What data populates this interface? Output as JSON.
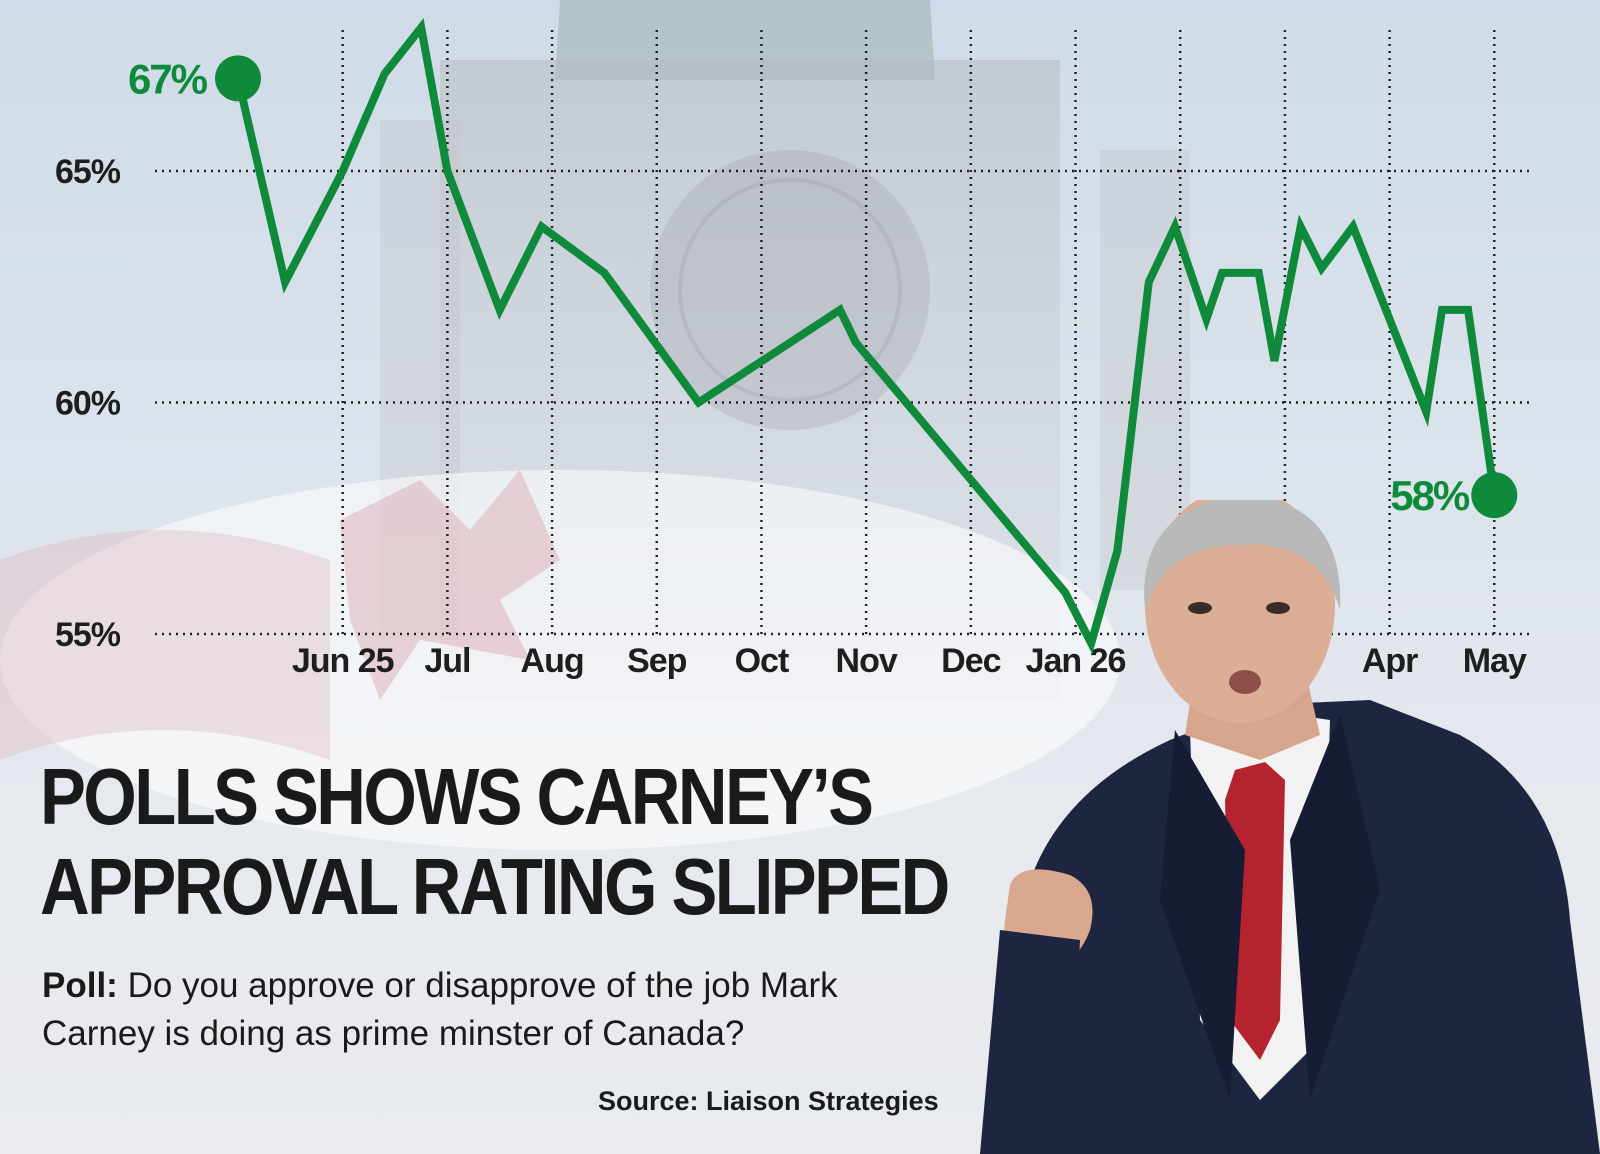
{
  "colors": {
    "line": "#0f8a3a",
    "grid": "#222222",
    "text": "#1a1a1a"
  },
  "headline": {
    "line1": "POLLS SHOWS CARNEY’S",
    "line2": "APPROVAL RATING SLIPPED"
  },
  "subtitle": {
    "lead": "Poll:",
    "text": "Do you approve or disapprove of the job Mark Carney is doing as prime minster of Canada?"
  },
  "source": "Source: Liaison Strategies",
  "chart_data": {
    "type": "line",
    "y_ticks": [
      55,
      60,
      65
    ],
    "y_tick_labels": [
      "55%",
      "60%",
      "65%"
    ],
    "ylim": [
      55,
      68
    ],
    "x_ticks": [
      2,
      4,
      6,
      8,
      10,
      12,
      14,
      16,
      18,
      20,
      22,
      24
    ],
    "x_tick_labels": [
      "Jun 25",
      "Jul",
      "Aug",
      "Sep",
      "Oct",
      "Nov",
      "Dec",
      "Jan 26",
      "",
      "",
      "Apr",
      "May"
    ],
    "xlim": [
      0,
      24.3
    ],
    "grid": true,
    "series": [
      {
        "values": [
          [
            0.0,
            67.0
          ],
          [
            0.9,
            62.6
          ],
          [
            2.0,
            65.0
          ],
          [
            2.8,
            67.1
          ],
          [
            3.5,
            68.1
          ],
          [
            4.0,
            65.0
          ],
          [
            5.0,
            62.0
          ],
          [
            5.8,
            63.8
          ],
          [
            7.0,
            62.8
          ],
          [
            8.8,
            60.0
          ],
          [
            11.5,
            62.0
          ],
          [
            11.8,
            61.3
          ],
          [
            15.8,
            55.9
          ],
          [
            16.3,
            54.8
          ],
          [
            16.8,
            56.8
          ],
          [
            17.4,
            62.6
          ],
          [
            17.9,
            63.8
          ],
          [
            18.5,
            61.8
          ],
          [
            18.8,
            62.8
          ],
          [
            19.5,
            62.8
          ],
          [
            19.8,
            60.9
          ],
          [
            20.3,
            63.8
          ],
          [
            20.7,
            62.9
          ],
          [
            21.3,
            63.8
          ],
          [
            22.7,
            59.8
          ],
          [
            23.0,
            62.0
          ],
          [
            23.5,
            62.0
          ],
          [
            24.0,
            58.0
          ]
        ]
      }
    ],
    "end_labels": {
      "start": "67%",
      "end": "58%"
    }
  }
}
